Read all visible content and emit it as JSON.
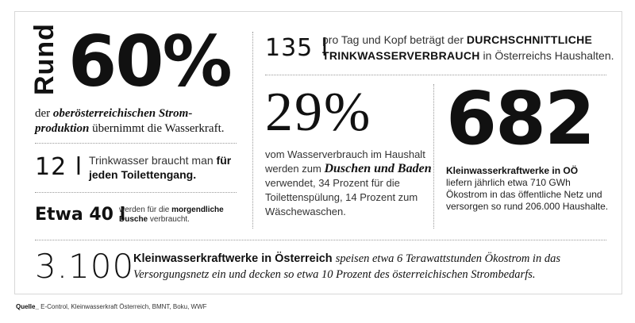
{
  "frame": {
    "border_color": "#d8d8d8"
  },
  "stat_60": {
    "prefix": "Rund",
    "value": "60%",
    "desc_before": "der",
    "desc_emph": "oberösterreichischen Strom-produktion",
    "desc_after": "übernimmt die Wasserkraft."
  },
  "stat_12": {
    "value": "12 l",
    "desc_plain": "Trinkwasser braucht man",
    "desc_bold": "für jeden Toilettengang."
  },
  "stat_40": {
    "value": "Etwa 40 l",
    "desc_before": "werden für die",
    "desc_bold": "morgendliche Dusche",
    "desc_after": "verbraucht."
  },
  "stat_135": {
    "value": "135 l",
    "desc_before": "pro Tag und Kopf beträgt der",
    "desc_bold": "DURCHSCHNITTLICHE TRINKWASSERVERBRAUCH",
    "desc_after": "in Österreichs Haushalten."
  },
  "stat_29": {
    "value": "29%",
    "desc_before": "vom Wasserverbrauch im Haushalt werden zum",
    "desc_emph": "Duschen und Baden",
    "desc_after": "verwendet, 34 Prozent für die Toilettenspülung, 14 Prozent zum Wäschewaschen."
  },
  "stat_682": {
    "value": "682",
    "desc_bold": "Kleinwasserkraftwerke in OÖ",
    "desc_after": "liefern jährlich etwa 710 GWh Ökostrom in das öffentliche Netz und versorgen so rund 206.000 Haushalte."
  },
  "stat_3100": {
    "value": "3.100",
    "desc_bold": "Kleinwasserkraftwerke in Österreich",
    "desc_italic": "speisen etwa 6 Terawattstunden Ökostrom in das Versorgungsnetz ein und decken so etwa 10 Prozent des österreichischen Strombedarfs."
  },
  "source": {
    "label": "Quelle_",
    "text": "E-Control, Kleinwasserkraft Österreich, BMNT, Boku, WWF"
  }
}
